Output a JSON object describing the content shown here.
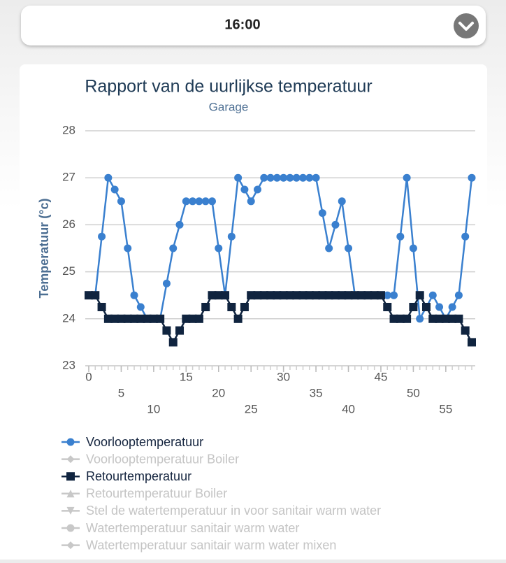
{
  "header": {
    "time": "16:00"
  },
  "chart_data": {
    "type": "line",
    "title": "Rapport van de uurlijkse temperatuur",
    "subtitle": "Garage",
    "ylabel": "Temperatuur (°c)",
    "xlim": [
      0,
      59
    ],
    "ylim": [
      23,
      28
    ],
    "xticks": [
      0,
      5,
      10,
      15,
      20,
      25,
      30,
      35,
      40,
      45,
      50,
      55
    ],
    "yticks": [
      23,
      24,
      25,
      26,
      27,
      28
    ],
    "grid": true,
    "series": [
      {
        "name": "Voorlooptemperatuur",
        "color": "#3a80cf",
        "marker": "circle",
        "visible": true,
        "values": [
          24.5,
          24.5,
          25.75,
          27,
          26.75,
          26.5,
          25.5,
          24.5,
          24.25,
          24,
          24,
          24,
          24.75,
          25.5,
          26,
          26.5,
          26.5,
          26.5,
          26.5,
          26.5,
          25.5,
          24.5,
          25.75,
          27,
          26.75,
          26.5,
          26.75,
          27,
          27,
          27,
          27,
          27,
          27,
          27,
          27,
          27,
          26.25,
          25.5,
          26,
          26.5,
          25.5,
          24.5,
          24.5,
          24.5,
          24.5,
          24.5,
          24.5,
          24.5,
          25.75,
          27,
          25.5,
          24,
          24.25,
          24.5,
          24.25,
          24,
          24.25,
          24.5,
          25.75,
          27
        ]
      },
      {
        "name": "Voorlooptemperatuur Boiler",
        "color": "#c8c8c8",
        "marker": "diamond",
        "visible": false
      },
      {
        "name": "Retourtemperatuur",
        "color": "#10243f",
        "marker": "square",
        "visible": true,
        "values": [
          24.5,
          24.5,
          24.25,
          24,
          24,
          24,
          24,
          24,
          24,
          24,
          24,
          24,
          23.75,
          23.5,
          23.75,
          24,
          24,
          24,
          24.25,
          24.5,
          24.5,
          24.5,
          24.25,
          24,
          24.25,
          24.5,
          24.5,
          24.5,
          24.5,
          24.5,
          24.5,
          24.5,
          24.5,
          24.5,
          24.5,
          24.5,
          24.5,
          24.5,
          24.5,
          24.5,
          24.5,
          24.5,
          24.5,
          24.5,
          24.5,
          24.5,
          24.25,
          24,
          24,
          24,
          24.25,
          24.5,
          24.25,
          24,
          24,
          24,
          24,
          24,
          23.75,
          23.5
        ]
      },
      {
        "name": "Retourtemperatuur Boiler",
        "color": "#c8c8c8",
        "marker": "triangle",
        "visible": false
      },
      {
        "name": "Stel de watertemperatuur in voor sanitair warm water",
        "color": "#c8c8c8",
        "marker": "triangle-down",
        "visible": false
      },
      {
        "name": "Watertemperatuur sanitair warm water",
        "color": "#c8c8c8",
        "marker": "circle",
        "visible": false
      },
      {
        "name": "Watertemperatuur sanitair warm water mixen",
        "color": "#c8c8c8",
        "marker": "diamond",
        "visible": false
      }
    ]
  }
}
